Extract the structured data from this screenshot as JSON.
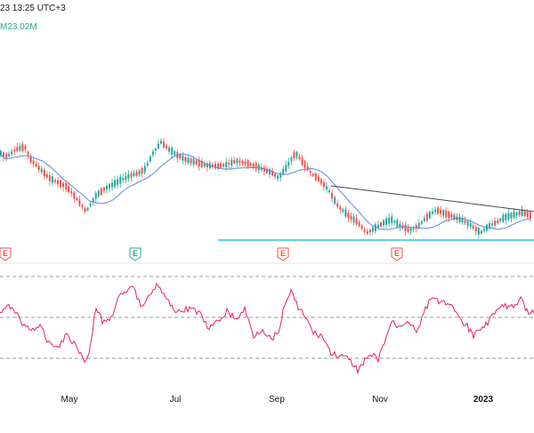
{
  "header": {
    "date_fragment": "23 13:25 UTC+3",
    "volume_fragment": "M23.02M"
  },
  "colors": {
    "up": "#26a69a",
    "down": "#ef5350",
    "ma": "#5b8bd9",
    "trendline": "#434651",
    "support": "#26c6da",
    "rsi": "#e91e63",
    "rsi_bands": "#9598a1",
    "earnings": "#ef5350",
    "earnings_alt": "#26a69a"
  },
  "earnings_events": [
    {
      "label": "E",
      "kind": "down"
    },
    {
      "label": "E",
      "kind": "up"
    },
    {
      "label": "E",
      "kind": "down"
    },
    {
      "label": "E",
      "kind": "down"
    }
  ],
  "chart_data": {
    "type": "line",
    "x_labels": [
      "May",
      "Jul",
      "Sep",
      "Nov",
      "2023"
    ],
    "price_series_shape": "candlestick with moving average",
    "rsi_bands": [
      70,
      50,
      30
    ],
    "grid": false
  }
}
